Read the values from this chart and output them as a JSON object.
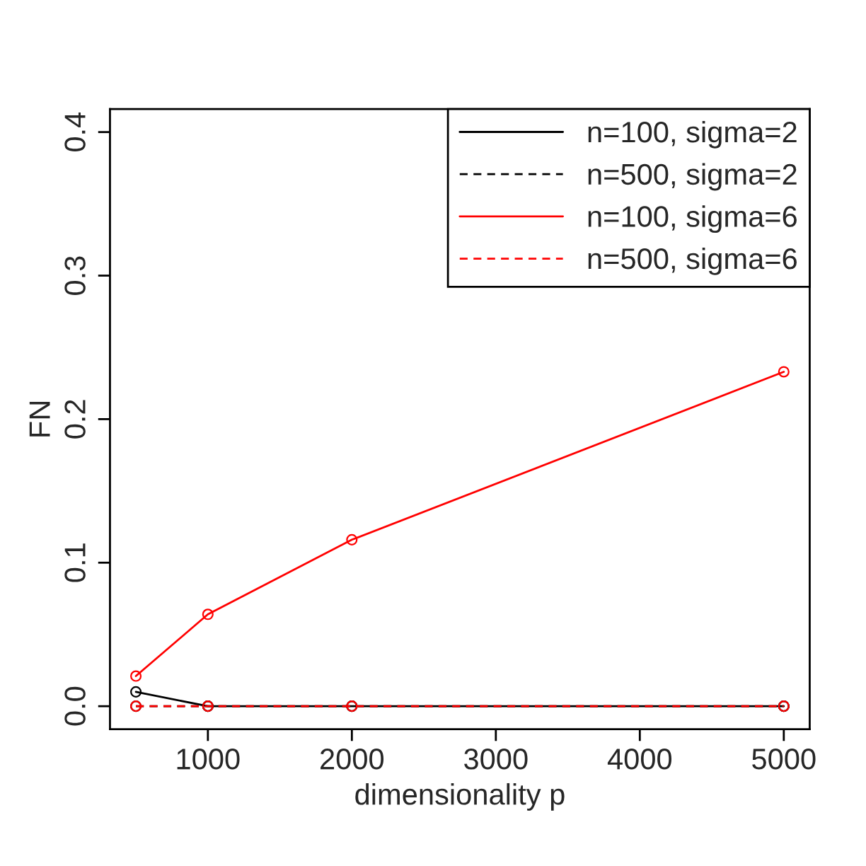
{
  "chart_data": {
    "type": "line",
    "xlabel": "dimensionality p",
    "ylabel": "FN",
    "x": [
      500,
      1000,
      2000,
      5000
    ],
    "series": [
      {
        "name": "n=100, sigma=2",
        "color": "#000000",
        "line_style": "solid",
        "values": [
          0.01,
          0,
          0,
          0
        ]
      },
      {
        "name": "n=500, sigma=2",
        "color": "#000000",
        "line_style": "dashed",
        "values": [
          0,
          0,
          0,
          0
        ]
      },
      {
        "name": "n=100, sigma=6",
        "color": "#ff0000",
        "line_style": "solid",
        "values": [
          0.021,
          0.064,
          0.116,
          0.233
        ]
      },
      {
        "name": "n=500, sigma=6",
        "color": "#ff0000",
        "line_style": "dashed",
        "values": [
          0,
          0,
          0,
          0
        ]
      }
    ],
    "xlim": [
      320,
      5180
    ],
    "ylim": [
      -0.016,
      0.416
    ],
    "xticks": [
      1000,
      2000,
      3000,
      4000,
      5000
    ],
    "yticks": [
      {
        "value": 0,
        "label": "0.0"
      },
      0.1,
      0.2,
      0.3,
      0.4
    ],
    "marker": "circle",
    "grid": false,
    "legend": "top right"
  }
}
